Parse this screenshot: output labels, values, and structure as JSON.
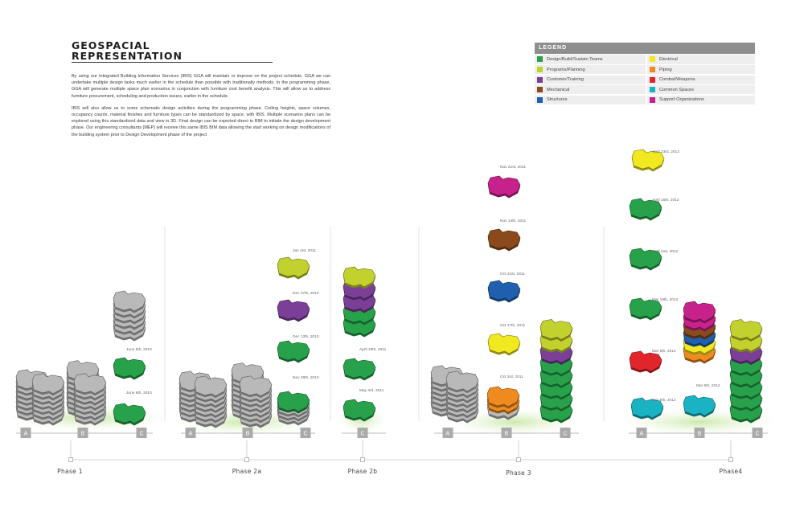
{
  "title_line1": "GEOSPACIAL",
  "title_line2": "REPRESENTATION",
  "paragraph1": "By using our Integrated Building Information Services (IBIS) GGA will maintain or improve on the project schedule. GGA we can undertake multiple design tasks much earlier in the schedule than possible with traditionally methods. In the programming phase, GGA will generate multiple space plan scenarios in conjunction with furniture cost benefit analysis. This will allow us to address furniture procurement, scheduling and production issues, earlier in the schedule.",
  "paragraph2": "IBIS will also allow us to some schematic design activities during the programming phase. Ceiling heights, space volumes, occupancy counts, material finishes and furniture types can be standardized by space, with IBIS. Multiple scenarios plans can be explored using this standardized data and view in 3D. Final design can be exported direct to BIM to initiate the design development phase. Our engineering consultants (MEP) will receive this same IBIS BIM data allowing the start working on design modifications of the building system prior to Design Development phase of the project",
  "legend": {
    "title": "LEGEND",
    "items": [
      {
        "label": "Design/Build/Sustain Teams",
        "color": "#27a24b"
      },
      {
        "label": "Electrical",
        "color": "#f2e81f"
      },
      {
        "label": "Programs/Planning",
        "color": "#c3d12f"
      },
      {
        "label": "Piping",
        "color": "#ee8a1e"
      },
      {
        "label": "Customer/Training",
        "color": "#7b3f98"
      },
      {
        "label": "Combat/Weapons",
        "color": "#e1262b"
      },
      {
        "label": "Mechanical",
        "color": "#8a4a1c"
      },
      {
        "label": "Common Spaces",
        "color": "#1ab3c4"
      },
      {
        "label": "Structures",
        "color": "#1f5fae"
      },
      {
        "label": "Support Organizations",
        "color": "#c7218b"
      }
    ]
  },
  "colors": {
    "design_build": "#27a24b",
    "programs": "#c3d12f",
    "customer": "#7b3f98",
    "mechanical": "#8a4a1c",
    "structures": "#1f5fae",
    "electrical": "#f2e81f",
    "piping": "#ee8a1e",
    "combat": "#e1262b",
    "common": "#1ab3c4",
    "support": "#c7218b",
    "existing_gray": "#b9b9b9"
  },
  "zone_letters": [
    "A",
    "B",
    "C"
  ],
  "phases": [
    {
      "name": "Phase 1",
      "zones": [
        "A",
        "B",
        "C"
      ]
    },
    {
      "name": "Phase 2a",
      "zones": [
        "A",
        "B",
        "C"
      ]
    },
    {
      "name": "Phase 2b",
      "zones": [
        "C"
      ]
    },
    {
      "name": "Phase 3",
      "zones": [
        "A",
        "B",
        "C"
      ]
    },
    {
      "name": "Phase4",
      "zones": [
        "A",
        "B",
        "C"
      ]
    }
  ],
  "date_labels": {
    "p1_june6": "June 6th, 2010",
    "p1_june6b": "June 6th, 2010",
    "p2a_jan3": "Jan 3rd, 2011",
    "p2a_dec27": "Dec 27th, 2010",
    "p2a_dec13": "Dec 13th, 2010",
    "p2a_nov29": "Nov 29th, 2010",
    "p2b_apr19": "April 19th, 2011",
    "p2b_may3": "May 3rd, 2011",
    "p3_nov21": "Nov 21st, 2011",
    "p3_nov14": "Nov 14th, 2011",
    "p3_oct31": "Oct 31st, 2011",
    "p3_oct17": "Oct 17th, 2011",
    "p3_oct3": "Oct 3rd, 2011",
    "p4_apr23": "April 23rd, 2012",
    "p4_apr16": "April 16th, 2012",
    "p4_apr2": "April 2nd, 2012",
    "p4_mar19": "Mar 19th, 2012",
    "p4_mar5": "Mar 5th, 2012",
    "p4_mar5b": "Mar 5th, 2012",
    "p4_mar5c": "Mar 5th, 2012"
  }
}
